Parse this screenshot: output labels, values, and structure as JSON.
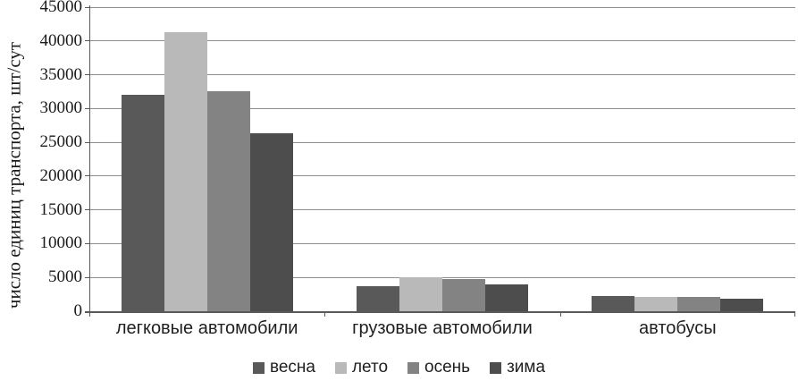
{
  "chart_data": {
    "type": "bar",
    "title": "",
    "ylabel": "число единиц транспорта, шт/сут",
    "xlabel": "",
    "categories": [
      "легковые автомобили",
      "грузовые автомобили",
      "автобусы"
    ],
    "series": [
      {
        "name": "весна",
        "color": "#595959",
        "values": [
          32000,
          3700,
          2200
        ]
      },
      {
        "name": "лето",
        "color": "#b9b9b9",
        "values": [
          41300,
          5000,
          2100
        ]
      },
      {
        "name": "осень",
        "color": "#838383",
        "values": [
          32500,
          4800,
          2100
        ]
      },
      {
        "name": "зима",
        "color": "#4d4d4d",
        "values": [
          26400,
          4000,
          1800
        ]
      }
    ],
    "ylim": [
      0,
      45000
    ],
    "yticks": [
      0,
      5000,
      10000,
      15000,
      20000,
      25000,
      30000,
      35000,
      40000,
      45000
    ],
    "grid": true,
    "legend_position": "bottom"
  },
  "colors": {
    "gridline": "#8e8e8e",
    "axis": "#595959",
    "text": "#1f1f1f"
  }
}
